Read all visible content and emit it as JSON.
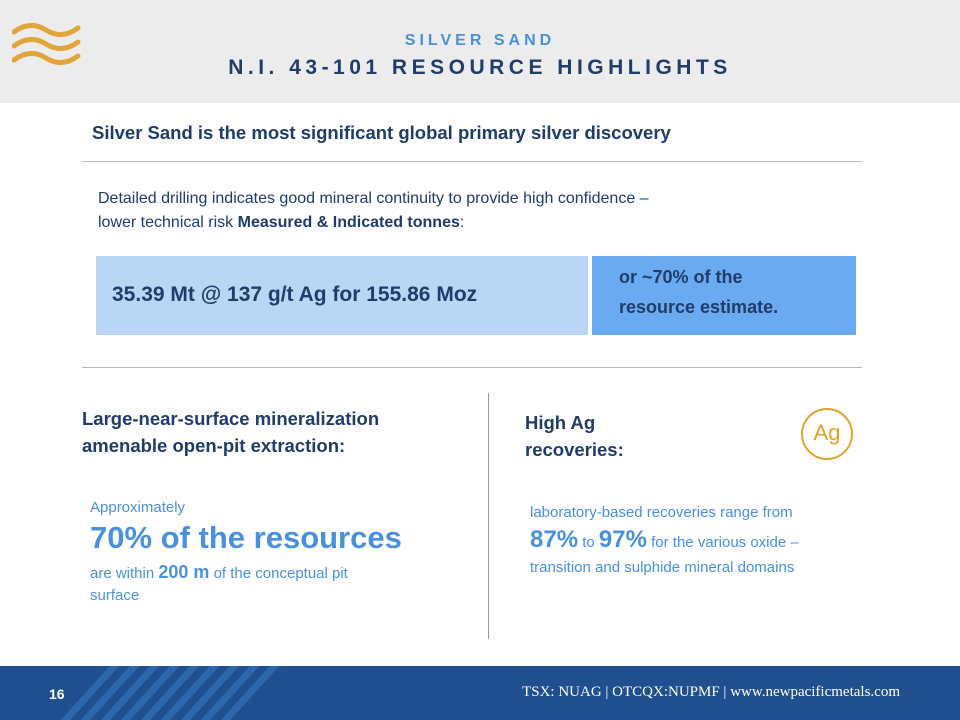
{
  "header": {
    "eyebrow": "SILVER SAND",
    "title": "N.I. 43-101 RESOURCE HIGHLIGHTS"
  },
  "subtitle": "Silver Sand is the most significant global primary silver discovery",
  "intro": {
    "line1": "Detailed drilling indicates good mineral continuity to provide high confidence –",
    "line2_prefix": "lower technical risk ",
    "line2_bold": "Measured & Indicated tonnes",
    "line2_suffix": ":"
  },
  "highlight": {
    "main": "35.39 Mt @ 137 g/t Ag for 155.86 Moz",
    "side_line1": "or ~70% of the",
    "side_line2": "resource estimate."
  },
  "left_section": {
    "heading_line1": "Large-near-surface mineralization",
    "heading_line2": "amenable open-pit extraction:",
    "approx": "Approximately",
    "big": "70% of the resources",
    "within_prefix": "are within ",
    "within_value": "200 m",
    "within_suffix": " of the conceptual pit",
    "within_line2": "surface"
  },
  "right_section": {
    "heading_line1": "High Ag",
    "heading_line2": "recoveries:",
    "badge": "Ag",
    "line1": "laboratory-based recoveries range from",
    "value_low": "87%",
    "to": " to ",
    "value_high": "97%",
    "line2_suffix": " for the various oxide –",
    "line3": "transition and sulphide mineral domains"
  },
  "footer": {
    "page_number": "16",
    "ticker": "TSX: NUAG | OTCQX:NUPMF | www.newpacificmetals.com"
  },
  "colors": {
    "navy": "#1f3c6b",
    "accent_blue": "#4a90e2",
    "gold": "#e3a32a",
    "footer_blue": "#1f4f8f"
  },
  "icons": {
    "logo": "wave-logo-icon",
    "badge": "ag-element-icon"
  }
}
